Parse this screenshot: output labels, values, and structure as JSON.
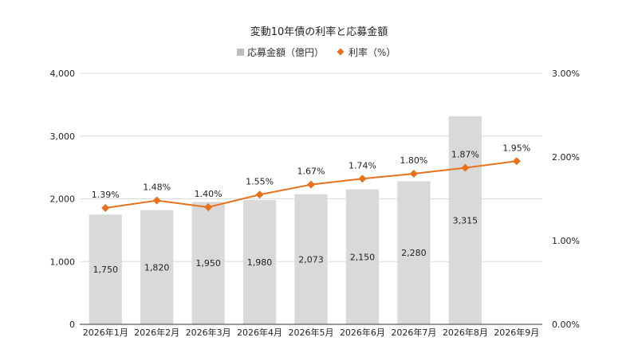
{
  "chart_data": {
    "type": "bar",
    "title": "変動10年債の利率と応募金額",
    "categories": [
      "2026年1月",
      "2026年2月",
      "2026年3月",
      "2026年4月",
      "2026年5月",
      "2026年6月",
      "2026年7月",
      "2026年8月",
      "2026年9月"
    ],
    "series": [
      {
        "name": "応募金額（億円）",
        "type": "bar",
        "axis": "left",
        "color": "#d9d9d9",
        "values": [
          1750,
          1820,
          1950,
          1980,
          2073,
          2150,
          2280,
          3315,
          null
        ],
        "labels": [
          "1,750",
          "1,820",
          "1,950",
          "1,980",
          "2,073",
          "2,150",
          "2,280",
          "3,315",
          ""
        ]
      },
      {
        "name": "利率（%）",
        "type": "line",
        "axis": "right",
        "color": "#e8711c",
        "values": [
          1.39,
          1.48,
          1.4,
          1.55,
          1.67,
          1.74,
          1.8,
          1.87,
          1.95
        ],
        "labels": [
          "1.39%",
          "1.48%",
          "1.40%",
          "1.55%",
          "1.67%",
          "1.74%",
          "1.80%",
          "1.87%",
          "1.95%"
        ]
      }
    ],
    "y_left": {
      "ylim": [
        0,
        4000
      ],
      "ticks": [
        0,
        1000,
        2000,
        3000,
        4000
      ],
      "tick_labels": [
        "0",
        "1,000",
        "2,000",
        "3,000",
        "4,000"
      ]
    },
    "y_right": {
      "ylim": [
        0,
        3.0
      ],
      "ticks": [
        0,
        1.0,
        2.0,
        3.0
      ],
      "tick_labels": [
        "0.00%",
        "1.00%",
        "2.00%",
        "3.00%"
      ]
    },
    "grid": true,
    "legend": "top-center"
  }
}
